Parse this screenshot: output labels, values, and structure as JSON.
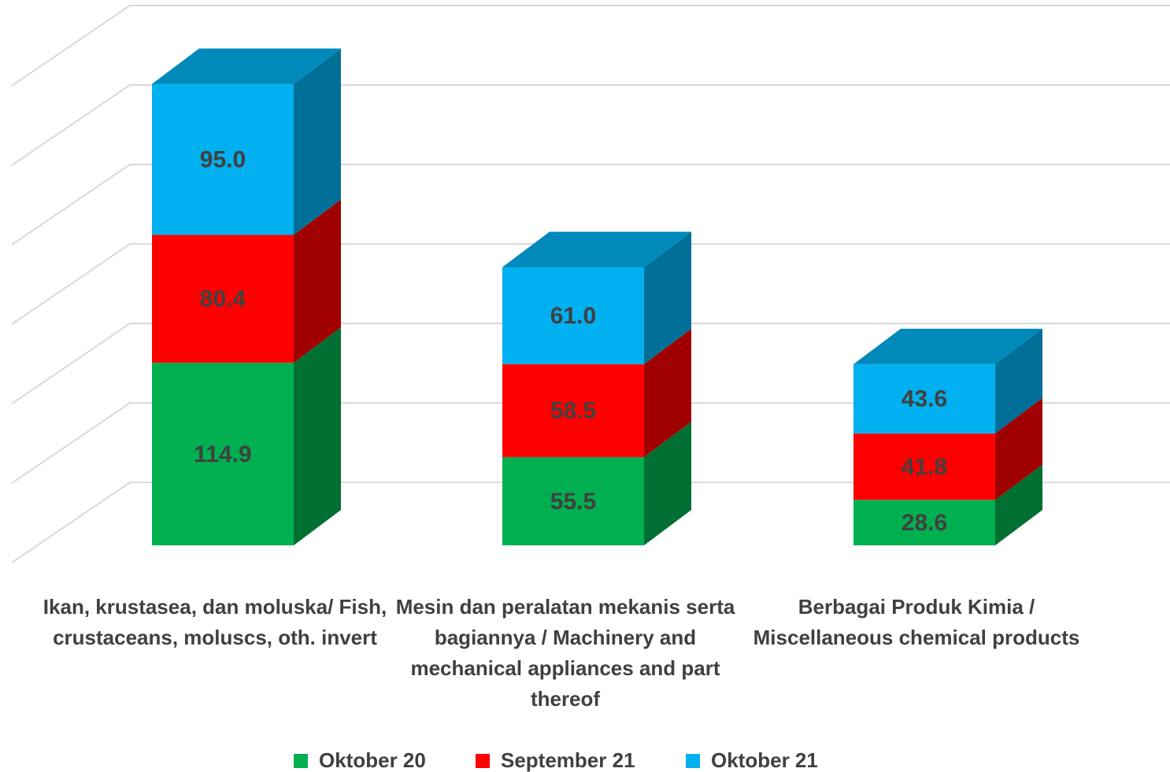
{
  "chart_data": {
    "type": "bar3d_stacked",
    "categories": [
      "Ikan, krustasea, dan moluska/ Fish, crustaceans, moluscs, oth. invert",
      "Mesin dan peralatan  mekanis serta bagiannya   / Machinery and mechanical appliances and part thereof",
      "Berbagai Produk Kimia / Miscellaneous chemical products"
    ],
    "series": [
      {
        "name": "Oktober 20",
        "color": "#00b050",
        "values": [
          114.9,
          55.5,
          28.6
        ]
      },
      {
        "name": "September 21",
        "color": "#ff0000",
        "values": [
          80.4,
          58.5,
          41.8
        ]
      },
      {
        "name": "Oktober 21",
        "color": "#00b0f0",
        "values": [
          95.0,
          61.0,
          43.6
        ]
      }
    ],
    "value_labels": [
      [
        "114.9",
        "55.5",
        "28.6"
      ],
      [
        "80.4",
        "58.5",
        "41.8"
      ],
      [
        "95.0",
        "61.0",
        "43.6"
      ]
    ],
    "ylim": [
      0,
      300
    ],
    "yticks": [
      0,
      50,
      100,
      150,
      200,
      250,
      300
    ],
    "grid": true,
    "legend": "bottom"
  }
}
